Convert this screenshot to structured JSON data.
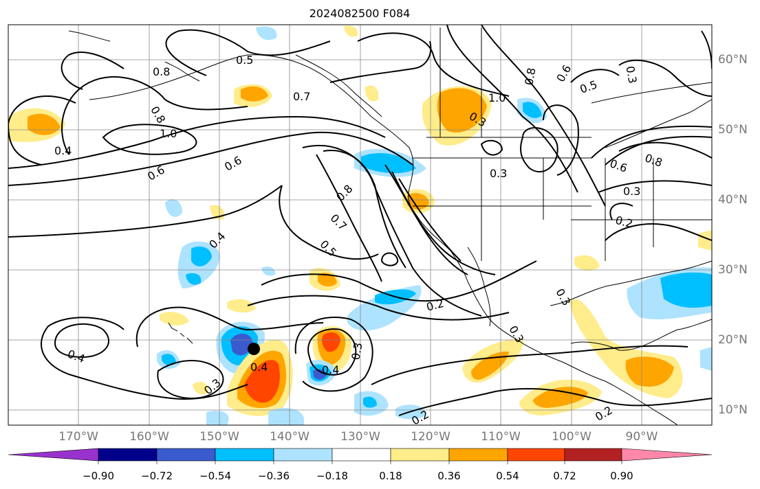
{
  "title": "2024082500 F084",
  "map": {
    "projection": "cylindrical",
    "lon_range": [
      -180,
      -80
    ],
    "lat_range": [
      8,
      65
    ],
    "lon_labels": [
      "170°W",
      "160°W",
      "150°W",
      "140°W",
      "130°W",
      "120°W",
      "110°W",
      "100°W",
      "90°W"
    ],
    "lat_labels": [
      "60°N",
      "50°N",
      "40°N",
      "30°N",
      "20°N",
      "10°N"
    ],
    "grid": true,
    "storm_marker": {
      "lon": -145,
      "lat": 19
    }
  },
  "contour_labels": [
    "0.8",
    "0.5",
    "0.7",
    "0.8",
    "1.0",
    "0.4",
    "0.6",
    "0.6",
    "0.8",
    "0.7",
    "0.5",
    "0.4",
    "1.0",
    "0.3",
    "0.3",
    "0.8",
    "0.6",
    "0.5",
    "0.3",
    "0.6",
    "0.8",
    "0.3",
    "0.2",
    "0.2",
    "0.3",
    "0.4",
    "0.4",
    "0.3",
    "0.3",
    "0.2",
    "0.2",
    "0.4",
    "0.3"
  ],
  "colorbar": {
    "ticks": [
      "−0.90",
      "−0.72",
      "−0.54",
      "−0.36",
      "−0.18",
      "0.18",
      "0.36",
      "0.54",
      "0.72",
      "0.90"
    ],
    "colors": [
      "#9932CC",
      "#00008B",
      "#3A5ACD",
      "#00BFFF",
      "#AEE3FF",
      "#FFFFFF",
      "#FFEC8B",
      "#FFA500",
      "#FF4500",
      "#B22222",
      "#FF88AA"
    ]
  }
}
